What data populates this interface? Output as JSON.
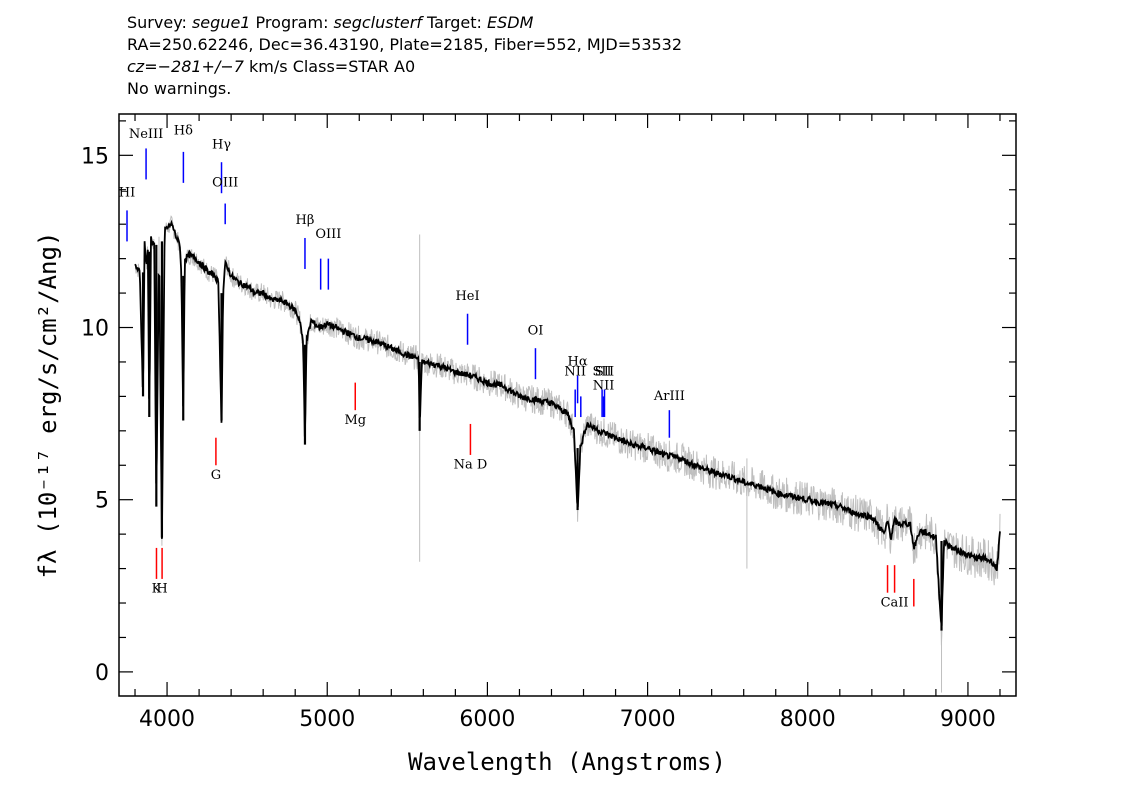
{
  "header": {
    "line1": {
      "survey_label": "Survey: ",
      "survey": "segue1",
      "program_label": " Program: ",
      "program": "segclusterf",
      "target_label": " Target: ",
      "target": "ESDM"
    },
    "line2": "RA=250.62246, Dec=36.43190, Plate=2185, Fiber=552, MJD=53532",
    "line3": {
      "cz": "cz=−281+/−7",
      "rest": " km/s Class=STAR A0"
    },
    "line4": "No warnings."
  },
  "chart_data": {
    "type": "line",
    "xlabel": "Wavelength (Angstroms)",
    "ylabel": "fλ (10⁻¹⁷ erg/s/cm²/Ang)",
    "xlim": [
      3700,
      9300
    ],
    "ylim": [
      -0.7,
      16.2
    ],
    "xticks": [
      4000,
      5000,
      6000,
      7000,
      8000,
      9000
    ],
    "yticks": [
      0,
      5,
      10,
      15
    ],
    "series": [
      {
        "role": "model",
        "color": "#000000",
        "x": [
          3800,
          3830,
          3850,
          3860,
          3870,
          3880,
          3889,
          3900,
          3920,
          3933,
          3950,
          3968,
          3985,
          4000,
          4030,
          4060,
          4080,
          4090,
          4101,
          4110,
          4140,
          4180,
          4220,
          4260,
          4300,
          4320,
          4340,
          4350,
          4365,
          4400,
          4450,
          4500,
          4550,
          4600,
          4650,
          4700,
          4750,
          4800,
          4830,
          4850,
          4861,
          4870,
          4900,
          4950,
          5000,
          5100,
          5200,
          5300,
          5400,
          5500,
          5570,
          5577,
          5590,
          5700,
          5800,
          5900,
          6000,
          6100,
          6200,
          6300,
          6400,
          6500,
          6540,
          6563,
          6580,
          6620,
          6700,
          6800,
          6900,
          7000,
          7100,
          7200,
          7300,
          7400,
          7500,
          7600,
          7700,
          7800,
          7900,
          8000,
          8100,
          8200,
          8300,
          8400,
          8480,
          8498,
          8520,
          8542,
          8560,
          8640,
          8662,
          8700,
          8760,
          8800,
          8835,
          8850,
          8900,
          8950,
          9000,
          9050,
          9100,
          9150,
          9180,
          9200
        ],
        "y": [
          11.8,
          11.6,
          8.0,
          12.5,
          11.8,
          12.2,
          7.4,
          12.6,
          12.4,
          4.8,
          12.5,
          3.9,
          12.8,
          12.9,
          13.0,
          12.6,
          12.4,
          11.5,
          7.3,
          12.0,
          12.1,
          12.0,
          11.8,
          11.6,
          11.5,
          11.3,
          7.3,
          11.0,
          11.9,
          11.5,
          11.3,
          11.2,
          11.0,
          11.0,
          10.8,
          10.8,
          10.7,
          10.5,
          10.2,
          9.5,
          6.6,
          9.6,
          10.2,
          10.0,
          10.1,
          9.9,
          9.7,
          9.6,
          9.4,
          9.2,
          9.1,
          7.0,
          9.0,
          8.9,
          8.7,
          8.6,
          8.4,
          8.3,
          8.0,
          7.9,
          7.8,
          7.5,
          7.0,
          4.7,
          6.5,
          7.2,
          7.0,
          6.8,
          6.6,
          6.5,
          6.3,
          6.2,
          6.0,
          5.8,
          5.7,
          5.5,
          5.4,
          5.2,
          5.1,
          5.0,
          4.9,
          4.8,
          4.6,
          4.5,
          4.0,
          4.4,
          3.9,
          4.4,
          4.3,
          4.3,
          3.6,
          4.1,
          4.0,
          3.9,
          1.2,
          3.8,
          3.6,
          3.5,
          3.4,
          3.3,
          3.3,
          3.2,
          3.0,
          4.0
        ]
      }
    ],
    "emission_lines": [
      {
        "label": "HI",
        "wave": 3750,
        "y_top": 13.4,
        "y_bot": 12.5,
        "label_y": 13.8
      },
      {
        "label": "NeIII",
        "wave": 3869,
        "y_top": 15.2,
        "y_bot": 14.3,
        "label_y": 15.5
      },
      {
        "label": "Hδ",
        "wave": 4102,
        "y_top": 15.1,
        "y_bot": 14.2,
        "label_y": 15.6
      },
      {
        "label": "Hγ",
        "wave": 4340,
        "y_top": 14.8,
        "y_bot": 13.9,
        "label_y": 15.2
      },
      {
        "label": "OIII",
        "wave": 4363,
        "y_top": 13.6,
        "y_bot": 13.0,
        "label_y": 14.1
      },
      {
        "label": "Hβ",
        "wave": 4861,
        "y_top": 12.6,
        "y_bot": 11.7,
        "label_y": 13.0
      },
      {
        "label": "",
        "wave": 4959,
        "y_top": 12.0,
        "y_bot": 11.1,
        "label_y": 12.6
      },
      {
        "label": "OIII",
        "wave": 5007,
        "y_top": 12.0,
        "y_bot": 11.1,
        "label_y": 12.6
      },
      {
        "label": "HeI",
        "wave": 5876,
        "y_top": 10.4,
        "y_bot": 9.5,
        "label_y": 10.8
      },
      {
        "label": "OI",
        "wave": 6300,
        "y_top": 9.4,
        "y_bot": 8.5,
        "label_y": 9.8
      },
      {
        "label": "NII",
        "wave": 6548,
        "y_top": 8.2,
        "y_bot": 7.4,
        "label_y": 8.6
      },
      {
        "label": "Hα",
        "wave": 6563,
        "y_top": 8.6,
        "y_bot": 7.8,
        "label_y": 8.9
      },
      {
        "label": "",
        "wave": 6583,
        "y_top": 8.0,
        "y_bot": 7.4,
        "label_y": 8.5
      },
      {
        "label": "SII",
        "wave": 6716,
        "y_top": 8.2,
        "y_bot": 7.4,
        "label_y": 8.6
      },
      {
        "label": "NII",
        "wave": 6725,
        "y_top": 8.0,
        "y_bot": 7.4,
        "label_y": 8.2
      },
      {
        "label": "SII",
        "wave": 6731,
        "y_top": 8.2,
        "y_bot": 7.4,
        "label_y": 8.6
      },
      {
        "label": "ArIII",
        "wave": 7136,
        "y_top": 7.6,
        "y_bot": 6.8,
        "label_y": 7.9
      }
    ],
    "absorption_lines": [
      {
        "label": "K",
        "wave": 3934,
        "y_top": 3.6,
        "y_bot": 2.7,
        "label_y": 2.3
      },
      {
        "label": "H",
        "wave": 3969,
        "y_top": 3.6,
        "y_bot": 2.7,
        "label_y": 2.3
      },
      {
        "label": "G",
        "wave": 4305,
        "y_top": 6.8,
        "y_bot": 6.0,
        "label_y": 5.6
      },
      {
        "label": "Mg",
        "wave": 5175,
        "y_top": 8.4,
        "y_bot": 7.6,
        "label_y": 7.2
      },
      {
        "label": "Na  D",
        "wave": 5894,
        "y_top": 7.2,
        "y_bot": 6.3,
        "label_y": 5.9
      },
      {
        "label": "",
        "wave": 8498,
        "y_top": 3.1,
        "y_bot": 2.3,
        "label_y": 1.9
      },
      {
        "label": "CaII",
        "wave": 8542,
        "y_top": 3.1,
        "y_bot": 2.3,
        "label_y": 1.9
      },
      {
        "label": "",
        "wave": 8662,
        "y_top": 2.7,
        "y_bot": 1.9,
        "label_y": 1.5
      }
    ],
    "colors": {
      "data": "#bfbfbf",
      "model": "#000000",
      "emission": "#0000ff",
      "absorption": "#ff0000"
    }
  }
}
